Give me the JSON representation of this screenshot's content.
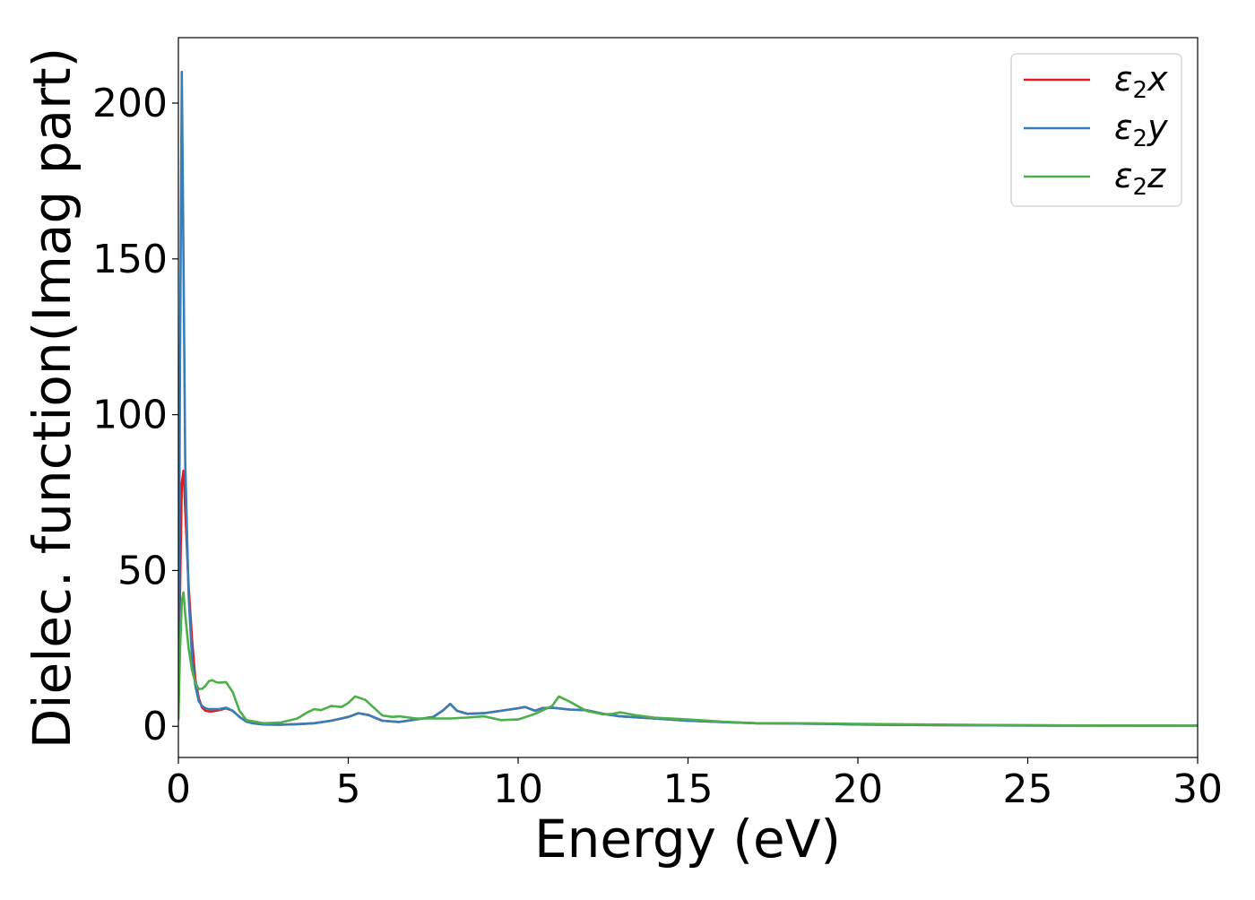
{
  "chart_data": {
    "type": "line",
    "title": "",
    "xlabel": "Energy (eV)",
    "ylabel": "Dielec. function(Imag part)",
    "xlim": [
      0,
      30
    ],
    "ylim": [
      -10,
      221
    ],
    "xticks": [
      0,
      5,
      10,
      15,
      20,
      25,
      30
    ],
    "xtick_labels": [
      "0",
      "5",
      "10",
      "15",
      "20",
      "25",
      "30"
    ],
    "yticks": [
      0,
      50,
      100,
      150,
      200
    ],
    "ytick_labels": [
      "0",
      "50",
      "100",
      "150",
      "200"
    ],
    "grid": false,
    "legend_position": "top-right",
    "series": [
      {
        "name": "ε₂x",
        "legend_base": "ε",
        "legend_sub": "2",
        "legend_var": "x",
        "color": "#e41a1c",
        "x": [
          0.0,
          0.05,
          0.1,
          0.15,
          0.2,
          0.3,
          0.4,
          0.5,
          0.6,
          0.7,
          0.8,
          0.9,
          1.0,
          1.2,
          1.4,
          1.6,
          1.8,
          2.0,
          2.2,
          2.5,
          3.0,
          3.5,
          4.0,
          4.5,
          5.0,
          5.3,
          5.6,
          6.0,
          6.5,
          7.0,
          7.5,
          7.8,
          8.0,
          8.2,
          8.5,
          9.0,
          9.5,
          10.0,
          10.2,
          10.5,
          10.7,
          11.0,
          11.5,
          12.0,
          12.5,
          13.0,
          14.0,
          15.0,
          16.0,
          17.0,
          18.0,
          19.0,
          20.0,
          22.0,
          24.0,
          26.0,
          28.0,
          30.0
        ],
        "y": [
          5,
          45,
          78,
          82,
          70,
          45,
          28,
          15,
          9,
          6,
          5,
          4.8,
          4.8,
          5.2,
          5.8,
          5.0,
          3.0,
          1.5,
          1.0,
          0.6,
          0.5,
          0.7,
          1.0,
          1.8,
          3.0,
          4.2,
          3.6,
          1.8,
          1.4,
          2.2,
          3.0,
          5.2,
          7.2,
          5.0,
          4.0,
          4.2,
          5.0,
          5.8,
          6.2,
          5.0,
          5.8,
          6.0,
          5.4,
          5.2,
          4.0,
          3.2,
          2.5,
          1.8,
          1.4,
          1.0,
          0.9,
          0.8,
          0.6,
          0.4,
          0.3,
          0.25,
          0.2,
          0.2
        ]
      },
      {
        "name": "ε₂y",
        "legend_base": "ε",
        "legend_sub": "2",
        "legend_var": "y",
        "color": "#377eb8",
        "x": [
          0.0,
          0.05,
          0.1,
          0.15,
          0.2,
          0.3,
          0.4,
          0.5,
          0.6,
          0.7,
          0.8,
          0.9,
          1.0,
          1.2,
          1.4,
          1.6,
          1.8,
          2.0,
          2.2,
          2.5,
          3.0,
          3.5,
          4.0,
          4.5,
          5.0,
          5.3,
          5.6,
          6.0,
          6.5,
          7.0,
          7.5,
          7.8,
          8.0,
          8.2,
          8.5,
          9.0,
          9.5,
          10.0,
          10.2,
          10.5,
          10.7,
          11.0,
          11.5,
          12.0,
          12.5,
          13.0,
          14.0,
          15.0,
          16.0,
          17.0,
          18.0,
          19.0,
          20.0,
          22.0,
          24.0,
          26.0,
          28.0,
          30.0
        ],
        "y": [
          10,
          120,
          210,
          150,
          85,
          42,
          22,
          13,
          8,
          6.5,
          5.8,
          5.5,
          5.5,
          5.5,
          6.0,
          5.0,
          3.0,
          1.5,
          1.0,
          0.6,
          0.5,
          0.7,
          1.0,
          1.8,
          3.0,
          4.2,
          3.6,
          1.8,
          1.4,
          2.2,
          3.0,
          5.2,
          7.2,
          5.0,
          4.0,
          4.2,
          5.0,
          5.8,
          6.2,
          5.0,
          5.8,
          6.0,
          5.4,
          5.2,
          4.0,
          3.2,
          2.5,
          1.8,
          1.4,
          1.0,
          0.9,
          0.8,
          0.6,
          0.4,
          0.3,
          0.25,
          0.2,
          0.2
        ]
      },
      {
        "name": "ε₂z",
        "legend_base": "ε",
        "legend_sub": "2",
        "legend_var": "z",
        "color": "#4daf4a",
        "x": [
          0.0,
          0.05,
          0.1,
          0.15,
          0.2,
          0.3,
          0.4,
          0.5,
          0.6,
          0.7,
          0.8,
          0.9,
          1.0,
          1.1,
          1.2,
          1.4,
          1.6,
          1.8,
          2.0,
          2.5,
          3.0,
          3.5,
          3.8,
          4.0,
          4.2,
          4.5,
          4.8,
          5.0,
          5.2,
          5.5,
          5.8,
          6.0,
          6.3,
          6.5,
          7.0,
          7.5,
          8.0,
          8.5,
          9.0,
          9.5,
          10.0,
          10.5,
          10.8,
          11.0,
          11.2,
          11.5,
          12.0,
          12.5,
          12.8,
          13.0,
          13.5,
          14.0,
          15.0,
          16.0,
          17.0,
          18.0,
          19.0,
          20.0,
          22.0,
          24.0,
          26.0,
          28.0,
          30.0
        ],
        "y": [
          2,
          25,
          40,
          43,
          36,
          25,
          18,
          14,
          12,
          12,
          13,
          14.5,
          14.8,
          14.2,
          14,
          14.2,
          11,
          5,
          2,
          1.0,
          1.2,
          2.5,
          4.5,
          5.5,
          5.2,
          6.5,
          6.2,
          7.5,
          9.6,
          8.5,
          5.5,
          3.5,
          3.0,
          3.2,
          2.5,
          2.5,
          2.5,
          2.8,
          3.2,
          2.0,
          2.2,
          4.0,
          5.5,
          6.5,
          9.6,
          8.0,
          5.0,
          3.8,
          4.0,
          4.5,
          3.5,
          2.8,
          2.2,
          1.5,
          1.0,
          1.0,
          0.9,
          0.8,
          0.6,
          0.4,
          0.3,
          0.25,
          0.2
        ]
      }
    ]
  }
}
